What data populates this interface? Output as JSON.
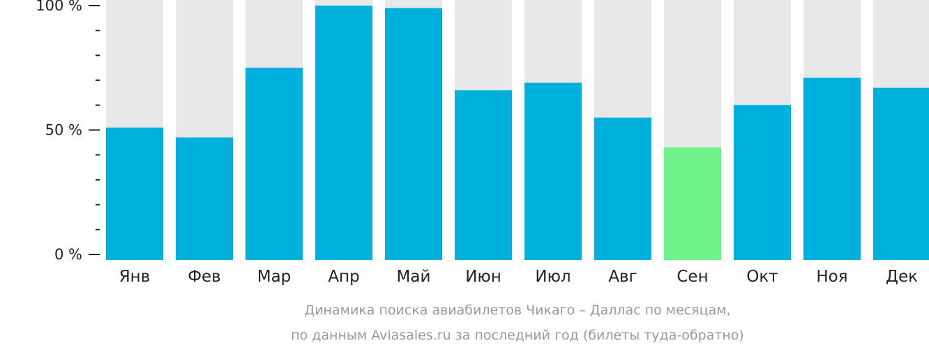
{
  "chart_data": {
    "type": "bar",
    "categories": [
      "Янв",
      "Фев",
      "Мар",
      "Апр",
      "Май",
      "Июн",
      "Июл",
      "Авг",
      "Сен",
      "Окт",
      "Ноя",
      "Дек"
    ],
    "values": [
      51,
      47,
      75,
      100,
      99,
      66,
      69,
      55,
      43,
      60,
      71,
      67
    ],
    "highlight_index": 8,
    "ylim": [
      0,
      100
    ],
    "yticks": [
      {
        "value": 100,
        "label": "100 %"
      },
      {
        "value": 50,
        "label": "50 %"
      },
      {
        "value": 0,
        "label": "0 %"
      }
    ],
    "minor_ticks_per_interval": 4,
    "caption_line1": "Динамика поиска авиабилетов Чикаго – Даллас по месяцам,",
    "caption_line2": "по данным Aviasales.ru за последний год (билеты туда-обратно)",
    "colors": {
      "bar": "#00b0dc",
      "highlight": "#6ef28a",
      "background_bar": "#e8e8e8",
      "axis": "#222222",
      "caption": "#999999"
    }
  }
}
